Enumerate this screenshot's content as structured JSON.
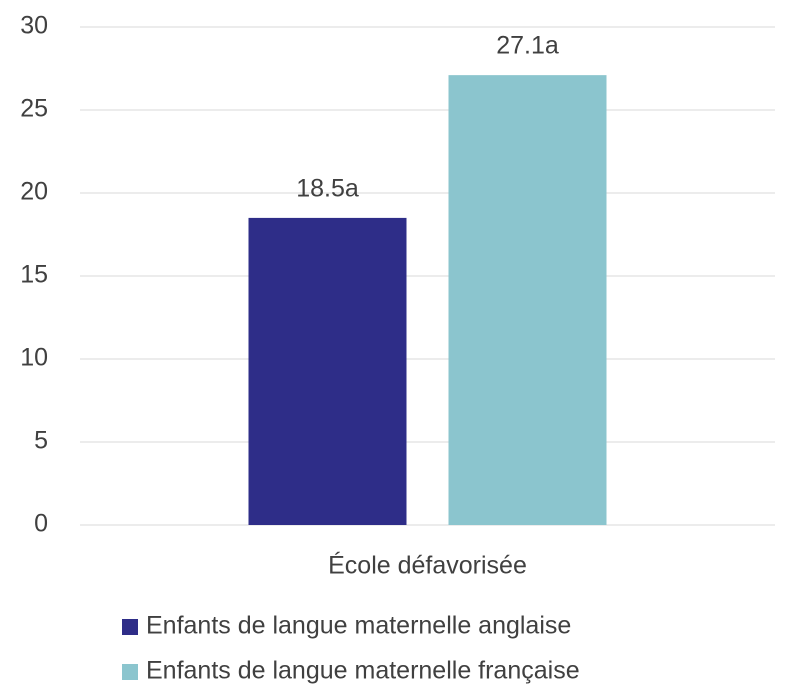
{
  "chart_data": {
    "type": "bar",
    "categories": [
      "École défavorisée"
    ],
    "series": [
      {
        "name": "Enfants de langue maternelle anglaise",
        "color": "#2e2d88",
        "values": [
          18.5
        ],
        "value_labels": [
          "18.5a"
        ]
      },
      {
        "name": "Enfants de langue maternelle française",
        "color": "#8bc5ce",
        "values": [
          27.1
        ],
        "value_labels": [
          "27.1a"
        ]
      }
    ],
    "ylim": [
      0,
      30
    ],
    "yticks": [
      0,
      5,
      10,
      15,
      20,
      25,
      30
    ],
    "grid": true,
    "legend": "bottom"
  }
}
